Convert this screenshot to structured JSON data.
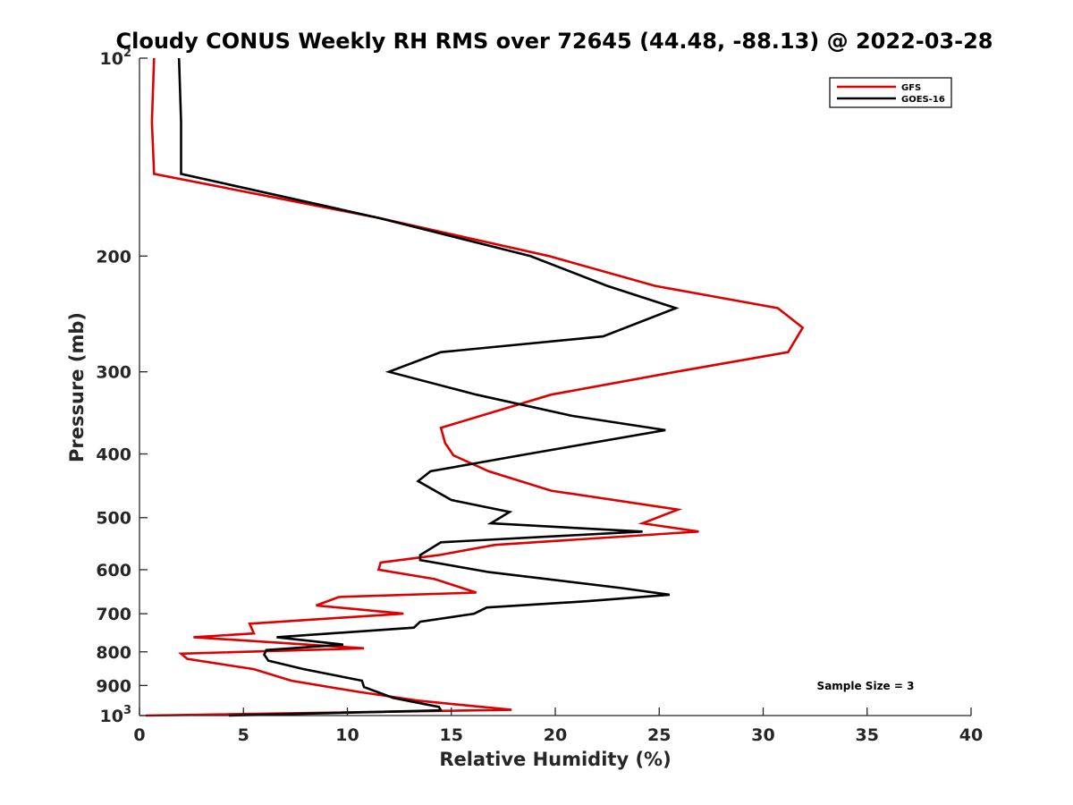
{
  "chart_data": {
    "type": "line",
    "title": "Cloudy CONUS Weekly RH RMS over 72645 (44.48, -88.13) @ 2022-03-28",
    "xlabel": "Relative Humidity (%)",
    "ylabel": "Pressure (mb)",
    "xlim": [
      0,
      40
    ],
    "ylim": [
      100,
      1000
    ],
    "y_scale": "log",
    "y_reversed": true,
    "grid": false,
    "legend_position": "top-right",
    "x_ticks": [
      "0",
      "5",
      "10",
      "15",
      "20",
      "25",
      "30",
      "35",
      "40"
    ],
    "y_ticks": [
      {
        "value": 100,
        "base": "10",
        "exp": "2"
      },
      {
        "value": 200,
        "label": "200"
      },
      {
        "value": 300,
        "label": "300"
      },
      {
        "value": 400,
        "label": "400"
      },
      {
        "value": 500,
        "label": "500"
      },
      {
        "value": 600,
        "label": "600"
      },
      {
        "value": 700,
        "label": "700"
      },
      {
        "value": 800,
        "label": "800"
      },
      {
        "value": 900,
        "label": "900"
      },
      {
        "value": 1000,
        "base": "10",
        "exp": "3"
      }
    ],
    "annotation": "Sample Size = 3",
    "series": [
      {
        "name": "GFS",
        "color": "#dd0000",
        "points": [
          [
            0.7,
            100
          ],
          [
            0.6,
            125
          ],
          [
            0.7,
            150
          ],
          [
            11.5,
            175
          ],
          [
            19.7,
            200
          ],
          [
            24.8,
            222
          ],
          [
            30.7,
            240
          ],
          [
            31.9,
            257
          ],
          [
            31.2,
            280
          ],
          [
            25.8,
            300
          ],
          [
            19.8,
            325
          ],
          [
            14.5,
            365
          ],
          [
            14.7,
            385
          ],
          [
            15.1,
            402
          ],
          [
            16.8,
            425
          ],
          [
            19.8,
            455
          ],
          [
            25.9,
            486
          ],
          [
            24.2,
            510
          ],
          [
            26.9,
            525
          ],
          [
            17.1,
            550
          ],
          [
            14.4,
            570
          ],
          [
            11.6,
            585
          ],
          [
            11.5,
            600
          ],
          [
            14.2,
            620
          ],
          [
            16.2,
            650
          ],
          [
            9.6,
            660
          ],
          [
            8.5,
            680
          ],
          [
            12.7,
            700
          ],
          [
            5.3,
            725
          ],
          [
            5.5,
            750
          ],
          [
            2.6,
            760
          ],
          [
            10.8,
            790
          ],
          [
            2.0,
            805
          ],
          [
            2.3,
            820
          ],
          [
            5.5,
            850
          ],
          [
            7.3,
            885
          ],
          [
            10.5,
            920
          ],
          [
            13.5,
            950
          ],
          [
            17.9,
            980
          ],
          [
            0.3,
            1000
          ]
        ]
      },
      {
        "name": "GOES-16",
        "color": "#000000",
        "points": [
          [
            1.9,
            100
          ],
          [
            2.0,
            125
          ],
          [
            2.0,
            150
          ],
          [
            11.5,
            175
          ],
          [
            18.8,
            200
          ],
          [
            22.5,
            222
          ],
          [
            25.8,
            240
          ],
          [
            22.3,
            265
          ],
          [
            14.5,
            280
          ],
          [
            12.0,
            300
          ],
          [
            16.2,
            325
          ],
          [
            20.8,
            350
          ],
          [
            25.3,
            368
          ],
          [
            18.7,
            400
          ],
          [
            14.0,
            425
          ],
          [
            13.4,
            440
          ],
          [
            15.0,
            470
          ],
          [
            17.8,
            490
          ],
          [
            16.9,
            510
          ],
          [
            24.2,
            525
          ],
          [
            14.5,
            545
          ],
          [
            13.5,
            570
          ],
          [
            13.5,
            580
          ],
          [
            16.8,
            605
          ],
          [
            23.2,
            640
          ],
          [
            25.5,
            655
          ],
          [
            21.5,
            670
          ],
          [
            16.7,
            685
          ],
          [
            16.1,
            700
          ],
          [
            13.5,
            720
          ],
          [
            13.2,
            735
          ],
          [
            6.6,
            760
          ],
          [
            9.8,
            780
          ],
          [
            6.1,
            795
          ],
          [
            6.0,
            808
          ],
          [
            6.2,
            825
          ],
          [
            7.9,
            850
          ],
          [
            10.7,
            885
          ],
          [
            10.8,
            905
          ],
          [
            12.2,
            940
          ],
          [
            14.4,
            970
          ],
          [
            14.5,
            982
          ],
          [
            4.3,
            1000
          ]
        ]
      }
    ]
  }
}
